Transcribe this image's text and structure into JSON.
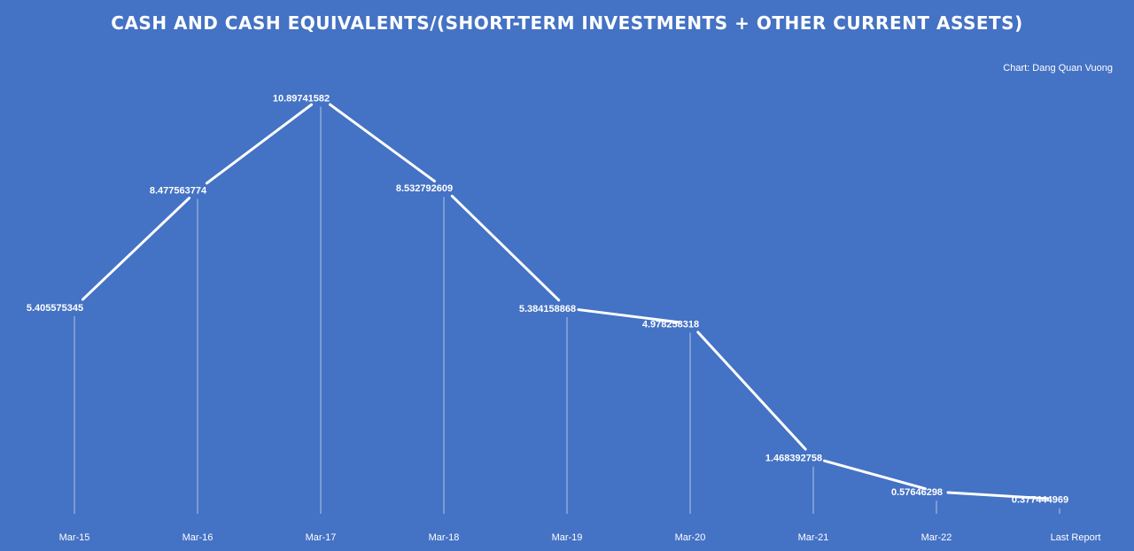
{
  "chart_data": {
    "type": "line",
    "title": "CASH AND CASH EQUIVALENTS/(SHORT-TERM INVESTMENTS + OTHER CURRENT ASSETS)",
    "credit": "Chart: Dang Quan Vuong",
    "categories": [
      "Mar-15",
      "Mar-16",
      "Mar-17",
      "Mar-18",
      "Mar-19",
      "Mar-20",
      "Mar-21",
      "Mar-22",
      "Last Report"
    ],
    "series": [
      {
        "values": [
          5.405575345,
          8.477563774,
          10.89741582,
          8.532792609,
          5.384158868,
          4.978258318,
          1.468392758,
          0.57646298,
          0.377444969
        ],
        "labels": [
          "5.405575345",
          "8.477563774",
          "10.89741582",
          "8.532792609",
          "5.384158868",
          "4.978258318",
          "1.468392758",
          "0.57646298",
          "0.377444969"
        ]
      }
    ],
    "ylim": [
      0,
      12
    ],
    "drop_lines": true,
    "gridlines": false,
    "legend": "none",
    "colors": {
      "background": "#4472c4",
      "line": "#ffffff",
      "text": "#ffffff"
    }
  }
}
